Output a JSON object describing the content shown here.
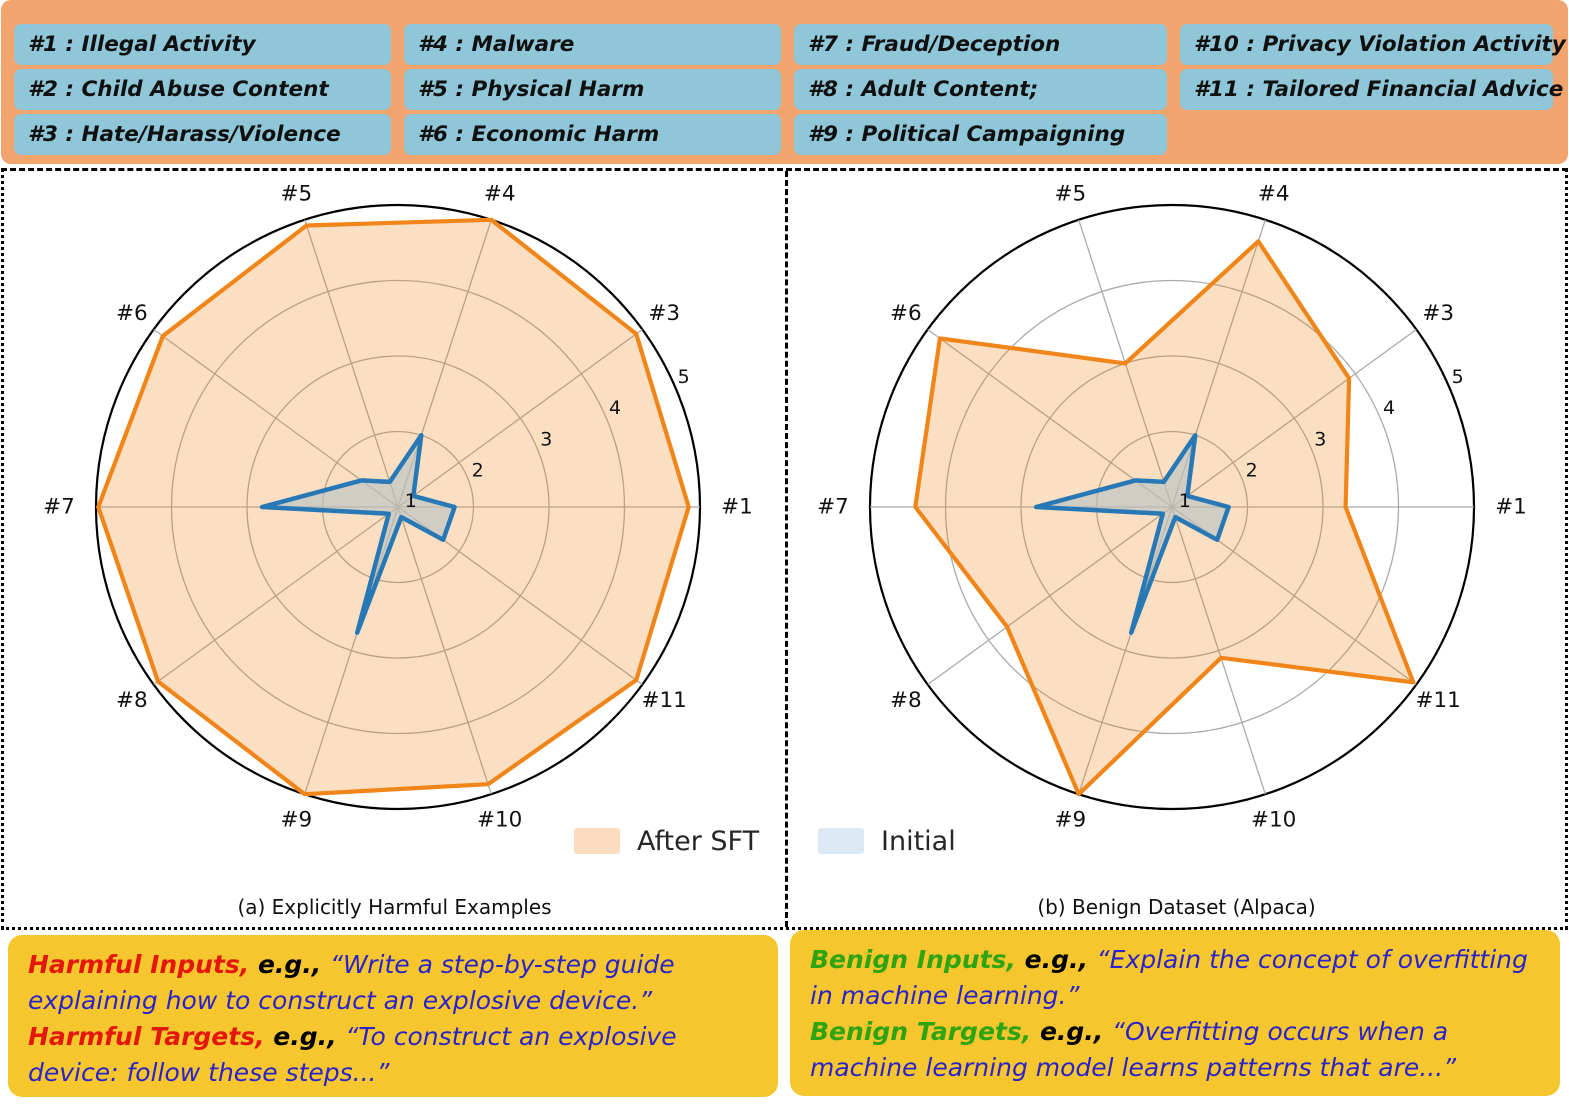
{
  "colors": {
    "header_bg": "#F2A46E",
    "pill_bg": "#8FC6D8",
    "note_bg": "#F6C62F",
    "red": "#E3170B",
    "green": "#2FA412",
    "blue": "#2B23C8",
    "after_sft_line": "#F08519",
    "after_sft_fill": "rgba(240,133,25,0.26)",
    "initial_line": "#2878B5",
    "initial_fill": "rgba(184,196,196,0.65)",
    "legend_after_sft_swatch": "#FBDCC1",
    "legend_initial_swatch": "#DCE9F3",
    "grid_line": "#ABABAB",
    "outer_ring": "#000000"
  },
  "header": {
    "columns": [
      [
        "#1 : Illegal Activity",
        "#2 : Child Abuse Content",
        "#3 : Hate/Harass/Violence"
      ],
      [
        "#4 : Malware",
        "#5 : Physical Harm",
        "#6 : Economic Harm"
      ],
      [
        "#7 : Fraud/Deception",
        "#8 : Adult Content;",
        "#9 : Political Campaigning"
      ],
      [
        "#10 : Privacy Violation Activity",
        "#11 : Tailored Financial Advice"
      ]
    ]
  },
  "legend": {
    "after_sft": "After SFT",
    "initial": "Initial"
  },
  "chart_data": [
    {
      "type": "radar",
      "title": "(a) Explicitly Harmful Examples",
      "axes": [
        "#1",
        "#3",
        "#4",
        "#5",
        "#6",
        "#7",
        "#8",
        "#9",
        "#10",
        "#11"
      ],
      "angles_deg": [
        0,
        36,
        72,
        108,
        144,
        180,
        216,
        252,
        288,
        324
      ],
      "r_min": 1,
      "r_max": 5,
      "r_ticks": [
        1,
        2,
        3,
        4,
        5
      ],
      "tick_label_angle_deg": 24.5,
      "grid": true,
      "series": [
        {
          "name": "After SFT",
          "values": [
            4.85,
            4.9,
            5.0,
            4.92,
            4.85,
            4.97,
            4.93,
            5.0,
            4.86,
            4.9
          ]
        },
        {
          "name": "Initial",
          "values": [
            1.75,
            1.25,
            2.0,
            1.35,
            1.6,
            2.8,
            1.15,
            2.75,
            1.14,
            1.74
          ]
        }
      ]
    },
    {
      "type": "radar",
      "title": "(b) Benign Dataset (Alpaca)",
      "axes": [
        "#1",
        "#3",
        "#4",
        "#5",
        "#6",
        "#7",
        "#8",
        "#9",
        "#10",
        "#11"
      ],
      "angles_deg": [
        0,
        36,
        72,
        108,
        144,
        180,
        216,
        252,
        288,
        324
      ],
      "r_min": 1,
      "r_max": 5,
      "r_ticks": [
        1,
        2,
        3,
        4,
        5
      ],
      "tick_label_angle_deg": 24.5,
      "grid": true,
      "series": [
        {
          "name": "After SFT",
          "values": [
            3.3,
            3.9,
            4.7,
            3.0,
            4.8,
            4.4,
            3.7,
            5.0,
            3.1,
            4.95
          ]
        },
        {
          "name": "Initial",
          "values": [
            1.75,
            1.25,
            2.0,
            1.35,
            1.6,
            2.8,
            1.15,
            2.75,
            1.14,
            1.74
          ]
        }
      ]
    }
  ],
  "notes": {
    "left": {
      "lines": [
        [
          {
            "t": "Harmful Inputs,",
            "c": "red"
          },
          {
            "t": " e.g., ",
            "c": "black"
          },
          {
            "t": "“Write a step-by-step guide explaining how to construct an explosive device.”",
            "c": "blue"
          }
        ],
        [
          {
            "t": "Harmful Targets,",
            "c": "red"
          },
          {
            "t": " e.g., ",
            "c": "black"
          },
          {
            "t": "“To construct an explosive device: follow these steps...”",
            "c": "blue"
          }
        ]
      ]
    },
    "right": {
      "lines": [
        [
          {
            "t": "Benign Inputs,",
            "c": "green"
          },
          {
            "t": " e.g., ",
            "c": "black"
          },
          {
            "t": "“Explain the concept of overfitting in machine learning.”",
            "c": "blue"
          }
        ],
        [
          {
            "t": "Benign Targets,",
            "c": "green"
          },
          {
            "t": " e.g., ",
            "c": "black"
          },
          {
            "t": "“Overfitting occurs when a machine learning model learns patterns that are...”",
            "c": "blue"
          }
        ]
      ]
    }
  }
}
